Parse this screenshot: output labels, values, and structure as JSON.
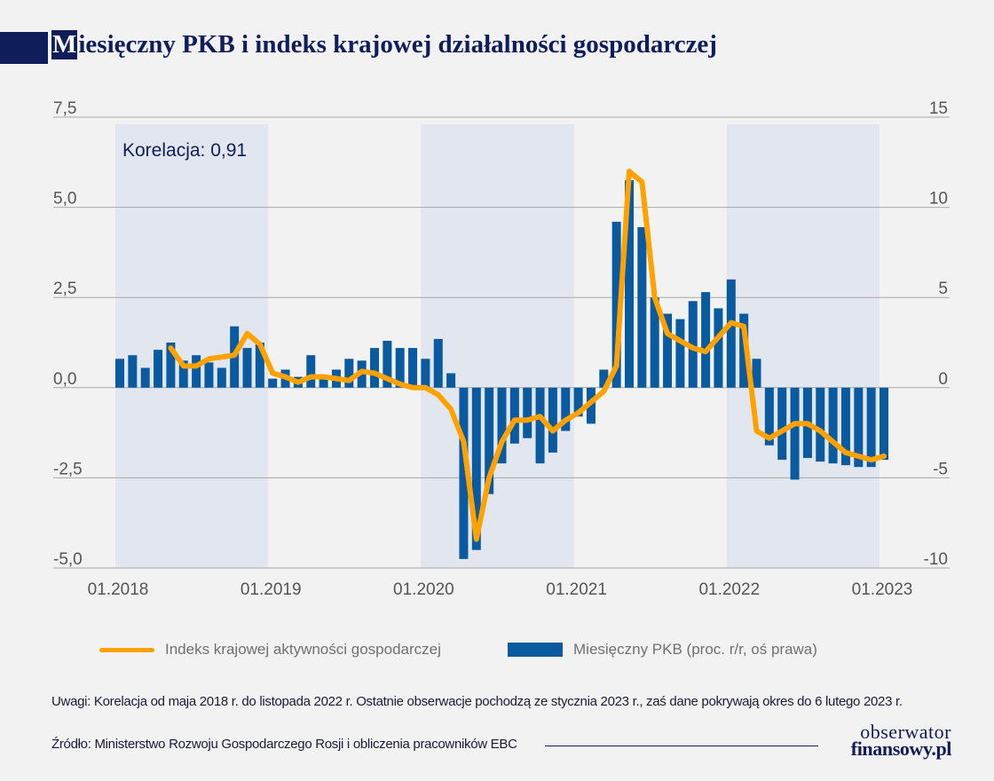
{
  "title": {
    "first_letter": "M",
    "rest": "iesięczny PKB i indeks krajowej działalności gospodarczej"
  },
  "annotation": "Korelacja: 0,91",
  "legend": {
    "line_label": "Indeks krajowej aktywności gospodarczej",
    "bar_label": "Miesięczny PKB (proc. r/r, oś prawa)"
  },
  "note": "Uwagi: Korelacja od maja 2018 r. do listopada 2022 r. Ostatnie obserwacje pochodzą ze stycznia 2023 r., zaś dane pokrywają okres do 6 lutego 2023 r.",
  "source": "Źródło: Ministerstwo Rozwoju Gospodarczego Rosji i obliczenia pracowników EBC",
  "logo": {
    "line1": "obserwator",
    "line2": "finansowy.pl"
  },
  "colors": {
    "title": "#0f1e5a",
    "line": "#ffa200",
    "bars": "#0a5aa0",
    "shade": "#e2e6ee",
    "grid": "#a8a8a8"
  },
  "chart_data": {
    "type": "bar+line",
    "x_ticks": [
      "01.2018",
      "01.2019",
      "01.2020",
      "01.2021",
      "01.2022",
      "01.2023"
    ],
    "left_axis": {
      "ticks": [
        "7,5",
        "5,0",
        "2,5",
        "0,0",
        "-2,5",
        "-5,0"
      ],
      "range": [
        -5.0,
        7.5
      ]
    },
    "right_axis": {
      "ticks": [
        "15",
        "10",
        "5",
        "0",
        "-5",
        "-10"
      ],
      "range": [
        -10,
        15
      ]
    },
    "grid": true,
    "shaded_periods": [
      [
        "2018-01",
        "2018-12"
      ],
      [
        "2020-01",
        "2020-12"
      ],
      [
        "2022-01",
        "2022-12"
      ]
    ],
    "bar_series": {
      "name": "Miesięczny PKB (proc. r/r, oś prawa)",
      "axis": "right",
      "start": "2018-01",
      "values": [
        1.6,
        1.8,
        1.1,
        2.1,
        2.5,
        1.5,
        1.8,
        1.4,
        1.1,
        3.4,
        2.2,
        2.5,
        0.5,
        1.0,
        0.6,
        1.8,
        0.7,
        1.0,
        1.6,
        1.5,
        2.2,
        2.6,
        2.2,
        2.2,
        1.6,
        2.7,
        0.8,
        -9.5,
        -9.0,
        -5.9,
        -4.2,
        -3.1,
        -2.8,
        -4.2,
        -3.6,
        -2.4,
        -1.6,
        -2.0,
        1.0,
        9.2,
        11.5,
        8.9,
        5.0,
        4.1,
        3.8,
        4.8,
        5.3,
        4.4,
        6.0,
        4.1,
        1.6,
        -3.2,
        -4.0,
        -5.1,
        -3.9,
        -4.1,
        -4.2,
        -4.3,
        -4.4,
        -4.4,
        -4.0
      ]
    },
    "line_series": {
      "name": "Indeks krajowej aktywności gospodarczej",
      "axis": "left",
      "start": "2018-05",
      "values": [
        1.1,
        0.6,
        0.6,
        0.8,
        0.85,
        0.9,
        1.5,
        1.2,
        0.4,
        0.3,
        0.15,
        0.3,
        0.3,
        0.25,
        0.2,
        0.45,
        0.4,
        0.25,
        0.1,
        0.0,
        0.0,
        -0.2,
        -0.6,
        -1.5,
        -4.2,
        -2.5,
        -1.5,
        -0.9,
        -0.9,
        -0.8,
        -1.2,
        -0.9,
        -0.7,
        -0.4,
        -0.1,
        0.6,
        6.0,
        5.7,
        2.5,
        1.5,
        1.3,
        1.1,
        1.0,
        1.4,
        1.8,
        1.7,
        -1.2,
        -1.4,
        -1.2,
        -1.0,
        -1.0,
        -1.2,
        -1.5,
        -1.8,
        -1.9,
        -2.0,
        -1.9
      ]
    }
  }
}
